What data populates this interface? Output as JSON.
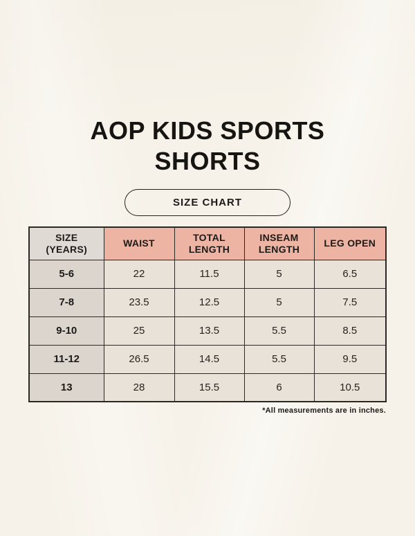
{
  "header": {
    "title_line1": "AOP KIDS SPORTS",
    "title_line2": "SHORTS",
    "badge_label": "SIZE CHART"
  },
  "colors": {
    "page_background": "#F6F2E9",
    "table_border": "#2B2824",
    "header_size_cell_bg": "#DFDAD4",
    "header_cell_bg": "#EDB4A3",
    "row_label_bg": "#DBD5CE",
    "data_cell_bg": "#E8E2D8",
    "text": "#1C1A18"
  },
  "chart_data": {
    "type": "table",
    "title": "AOP KIDS SPORTS SHORTS",
    "subtitle": "SIZE CHART",
    "columns": [
      "SIZE (YEARS)",
      "WAIST",
      "TOTAL LENGTH",
      "INSEAM LENGTH",
      "LEG OPEN"
    ],
    "rows": [
      [
        "5-6",
        "22",
        "11.5",
        "5",
        "6.5"
      ],
      [
        "7-8",
        "23.5",
        "12.5",
        "5",
        "7.5"
      ],
      [
        "9-10",
        "25",
        "13.5",
        "5.5",
        "8.5"
      ],
      [
        "11-12",
        "26.5",
        "14.5",
        "5.5",
        "9.5"
      ],
      [
        "13",
        "28",
        "15.5",
        "6",
        "10.5"
      ]
    ],
    "units_note": "*All measurements are in inches."
  }
}
